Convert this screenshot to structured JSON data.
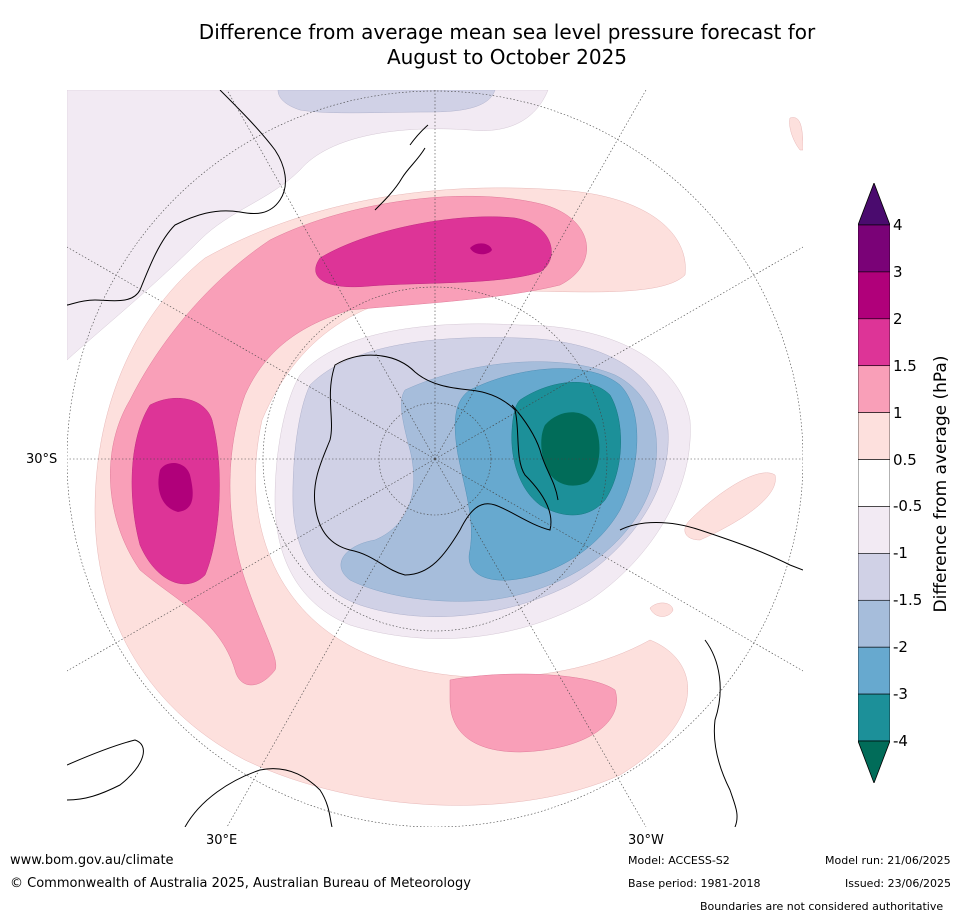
{
  "title_line1": "Difference from average mean sea level pressure forecast for",
  "title_line2": "August to October 2025",
  "map": {
    "projection": "south-polar",
    "lat_label": "30°S",
    "lon_label_east": "30°E",
    "lon_label_west": "30°W",
    "colors": {
      "ocean": "#ffffff",
      "land_outline": "#000000",
      "graticule": "#444444"
    }
  },
  "colorbar": {
    "title": "Difference from average (hPa)",
    "ticks": [
      "4",
      "3",
      "2",
      "1.5",
      "1",
      "0.5",
      "-0.5",
      "-1",
      "-1.5",
      "-2",
      "-3",
      "-4"
    ],
    "bins": [
      {
        "range": ">4",
        "color": "#4a0b6e"
      },
      {
        "range": "3 to 4",
        "color": "#7a0277"
      },
      {
        "range": "2 to 3",
        "color": "#b0007a"
      },
      {
        "range": "1.5 to 2",
        "color": "#dd3497"
      },
      {
        "range": "1 to 1.5",
        "color": "#f99fb8"
      },
      {
        "range": "0.5 to 1",
        "color": "#fde0dd"
      },
      {
        "range": "-0.5 to 0.5",
        "color": "#ffffff"
      },
      {
        "range": "-1 to -0.5",
        "color": "#f2eaf3"
      },
      {
        "range": "-1.5 to -1",
        "color": "#d0d1e6"
      },
      {
        "range": "-2 to -1.5",
        "color": "#a6bddb"
      },
      {
        "range": "-3 to -2",
        "color": "#67a9cf"
      },
      {
        "range": "-4 to -3",
        "color": "#1c9099"
      },
      {
        "range": "<-4",
        "color": "#016c59"
      }
    ]
  },
  "footer": {
    "website": "www.bom.gov.au/climate",
    "copyright": "© Commonwealth of Australia 2025, Australian Bureau of Meteorology",
    "model": "Model: ACCESS-S2",
    "base_period": "Base period: 1981-2018",
    "model_run": "Model run: 21/06/2025",
    "issued": "Issued: 23/06/2025",
    "disclaimer": "Boundaries are not considered authoritative"
  }
}
